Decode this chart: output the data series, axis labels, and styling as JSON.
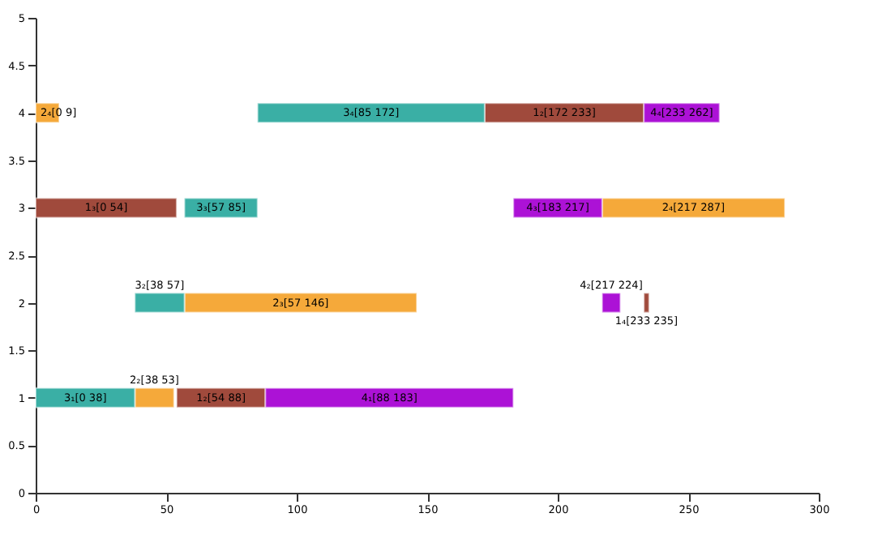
{
  "chart_data": {
    "type": "bar",
    "orientation": "horizontal",
    "xlim": [
      0,
      300
    ],
    "xticks": [
      0,
      50,
      100,
      150,
      200,
      250,
      300
    ],
    "ylim": [
      0,
      5
    ],
    "yticks": [
      0,
      0.5,
      1,
      1.5,
      2,
      2.5,
      3,
      3.5,
      4,
      4.5,
      5
    ],
    "grid": false,
    "series": [
      {
        "color": "#a04a3c",
        "x": [
          1,
          2,
          3,
          4
        ],
        "base": [
          54,
          233,
          0,
          172
        ],
        "values": [
          34,
          2,
          54,
          61
        ]
      },
      {
        "color": "#f5a93a",
        "x": [
          1,
          2,
          3,
          4
        ],
        "base": [
          38,
          57,
          217,
          0
        ],
        "values": [
          15,
          89,
          70,
          9
        ]
      },
      {
        "color": "#3aafa5",
        "x": [
          1,
          2,
          3,
          4
        ],
        "base": [
          0,
          38,
          57,
          85
        ],
        "values": [
          38,
          19,
          28,
          87
        ]
      },
      {
        "color": "#ac12d6",
        "x": [
          1,
          2,
          3,
          4
        ],
        "base": [
          88,
          217,
          183,
          233
        ],
        "values": [
          95,
          7,
          34,
          29
        ]
      }
    ],
    "annotations": [
      {
        "text": "3₁[0 38]",
        "x": 38,
        "y": 1
      },
      {
        "text": "2₂[38 53]",
        "x": 53,
        "y": 1
      },
      {
        "text": "1₂[54 88]",
        "x": 88,
        "y": 1
      },
      "4₁[88 183]",
      {
        "text": "3₂[38 57]",
        "x": 57,
        "y": 2
      },
      "2₃[57 146]",
      {
        "text": "4₂[217 224]",
        "x": 224,
        "y": 2
      },
      {
        "text": "1₄[233 235]",
        "x": 235,
        "y": 2
      },
      "1₃[0 54]",
      {
        "text": "3₃[57 85]",
        "x": 85,
        "y": 3
      },
      {
        "text": "4₃[183 217]",
        "x": 217,
        "y": 3
      },
      "2₄[217 287]",
      {
        "text": "2₄[0 9]",
        "x": 9,
        "y": 4
      },
      "3₄[85 172]",
      "1₂[172 233]",
      {
        "text": "4₄[233 262]",
        "x": 262,
        "y": 4
      }
    ]
  }
}
